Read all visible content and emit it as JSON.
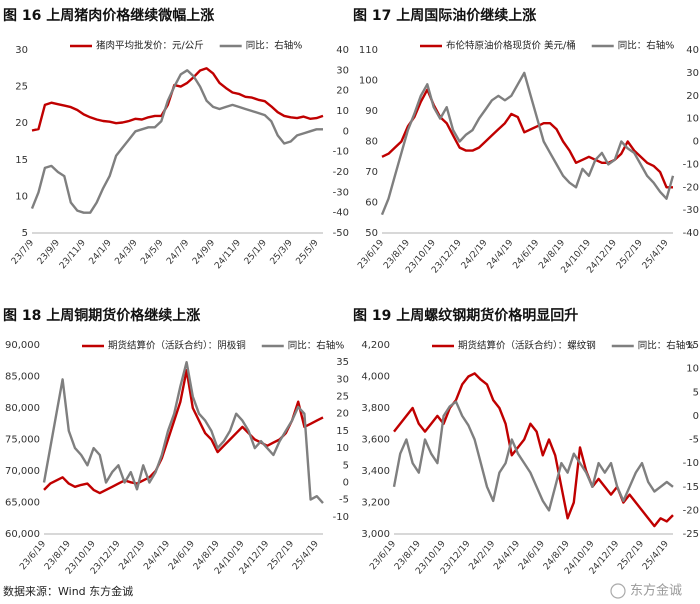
{
  "chart_data": [
    {
      "type": "line",
      "title": "图 16 上周猪肉价格继续微幅上涨",
      "categories": [
        "23/7/9",
        null,
        null,
        null,
        "23/9/9",
        null,
        null,
        null,
        "23/11/9",
        null,
        null,
        null,
        "24/1/9",
        null,
        null,
        null,
        "24/3/9",
        null,
        null,
        null,
        "24/5/9",
        null,
        null,
        null,
        "24/7/9",
        null,
        null,
        null,
        "24/9/9",
        null,
        null,
        null,
        "24/11/9",
        null,
        null,
        null,
        "25/1/9",
        null,
        null,
        null,
        "25/3/9",
        null,
        null,
        null,
        "25/5/9",
        null
      ],
      "ylim": [
        5,
        30
      ],
      "yticks": [
        5,
        10,
        15,
        20,
        25,
        30
      ],
      "y2lim": [
        -50,
        40
      ],
      "y2ticks": [
        -50,
        -40,
        -30,
        -20,
        -10,
        0,
        10,
        20,
        30,
        40
      ],
      "series": [
        {
          "name": "猪肉平均批发价：元/公斤",
          "color": "#c00000",
          "values": [
            19,
            19.2,
            22.5,
            22.8,
            22.6,
            22.4,
            22.2,
            21.8,
            21.2,
            20.8,
            20.5,
            20.3,
            20.2,
            20.0,
            20.1,
            20.3,
            20.6,
            20.5,
            20.8,
            21.0,
            21.0,
            22.5,
            25.2,
            25.0,
            25.5,
            26.3,
            27.2,
            27.5,
            26.8,
            25.5,
            24.8,
            24.2,
            24.0,
            23.6,
            23.5,
            23.2,
            23.0,
            22.3,
            21.5,
            21.0,
            20.8,
            20.7,
            20.9,
            20.6,
            20.7,
            21.0
          ]
        },
        {
          "name": "同比：右轴%",
          "color": "#7f7f7f",
          "axis": "y2",
          "values": [
            -38,
            -30,
            -18,
            -17,
            -20,
            -22,
            -35,
            -39,
            -40,
            -40,
            -35,
            -28,
            -22,
            -12,
            -8,
            -4,
            0,
            1,
            2,
            2,
            5,
            15,
            22,
            28,
            30,
            27,
            22,
            15,
            12,
            11,
            12,
            13,
            12,
            11,
            10,
            9,
            8,
            5,
            -2,
            -6,
            -5,
            -2,
            -1,
            0,
            1,
            1
          ]
        }
      ]
    },
    {
      "type": "line",
      "title": "图 17 上周国际油价继续上涨",
      "categories": [
        "23/6/19",
        null,
        null,
        null,
        "23/8/19",
        null,
        null,
        null,
        "23/10/19",
        null,
        null,
        null,
        "23/12/19",
        null,
        null,
        null,
        "24/2/19",
        null,
        null,
        null,
        "24/4/19",
        null,
        null,
        null,
        "24/6/19",
        null,
        null,
        null,
        "24/8/19",
        null,
        null,
        null,
        "24/10/19",
        null,
        null,
        null,
        "24/12/19",
        null,
        null,
        null,
        "25/2/19",
        null,
        null,
        null,
        "25/4/19",
        null
      ],
      "ylim": [
        50,
        110
      ],
      "yticks": [
        50,
        60,
        70,
        80,
        90,
        100,
        110
      ],
      "y2lim": [
        -40,
        40
      ],
      "y2ticks": [
        -40,
        -30,
        -20,
        -10,
        0,
        10,
        20,
        30,
        40
      ],
      "series": [
        {
          "name": "布伦特原油价格现货价 美元/桶",
          "color": "#c00000",
          "values": [
            75,
            76,
            78,
            80,
            85,
            88,
            93,
            97,
            92,
            88,
            86,
            82,
            78,
            77,
            77,
            78,
            80,
            82,
            84,
            86,
            89,
            88,
            83,
            84,
            85,
            86,
            86,
            84,
            80,
            77,
            73,
            74,
            75,
            74,
            73,
            73,
            74,
            76,
            80,
            77,
            75,
            73,
            72,
            70,
            65,
            65
          ]
        },
        {
          "name": "同比：右轴%",
          "color": "#7f7f7f",
          "axis": "y2",
          "values": [
            -32,
            -25,
            -15,
            -5,
            5,
            12,
            20,
            25,
            15,
            10,
            15,
            5,
            0,
            3,
            5,
            10,
            14,
            18,
            20,
            18,
            20,
            25,
            30,
            20,
            10,
            0,
            -5,
            -10,
            -15,
            -18,
            -20,
            -12,
            -15,
            -8,
            -5,
            -10,
            -8,
            0,
            -3,
            -5,
            -10,
            -15,
            -18,
            -22,
            -25,
            -15
          ]
        }
      ]
    },
    {
      "type": "line",
      "title": "图 18 上周铜期货价格继续上涨",
      "categories": [
        "23/6/19",
        null,
        null,
        null,
        "23/8/19",
        null,
        null,
        null,
        "23/10/19",
        null,
        null,
        null,
        "23/12/19",
        null,
        null,
        null,
        "24/2/19",
        null,
        null,
        null,
        "24/4/19",
        null,
        null,
        null,
        "24/6/19",
        null,
        null,
        null,
        "24/8/19",
        null,
        null,
        null,
        "24/10/19",
        null,
        null,
        null,
        "24/12/19",
        null,
        null,
        null,
        "25/2/19",
        null,
        null,
        null,
        "25/4/19",
        null
      ],
      "ylim": [
        60000,
        90000
      ],
      "yticks": [
        {
          "value": 60000,
          "label": "60,000"
        },
        {
          "value": 65000,
          "label": "65,000"
        },
        {
          "value": 70000,
          "label": "70,000"
        },
        {
          "value": 75000,
          "label": "75,000"
        },
        {
          "value": 80000,
          "label": "80,000"
        },
        {
          "value": 85000,
          "label": "85,000"
        },
        {
          "value": 90000,
          "label": "90,000"
        }
      ],
      "y2lim": [
        -15,
        40
      ],
      "y2ticks": [
        -10,
        -5,
        0,
        5,
        10,
        15,
        20,
        25,
        30,
        35
      ],
      "series": [
        {
          "name": "期货结算价（活跃合约）：阴极铜",
          "color": "#c00000",
          "values": [
            67000,
            68000,
            68500,
            69000,
            68000,
            67500,
            67800,
            68000,
            67000,
            66500,
            67000,
            67500,
            68000,
            68500,
            68200,
            68000,
            68500,
            69000,
            70000,
            72000,
            75000,
            78000,
            81000,
            86000,
            80000,
            78000,
            76000,
            75000,
            73000,
            74000,
            75000,
            76000,
            77000,
            76000,
            75000,
            74500,
            74000,
            74500,
            75000,
            76000,
            78000,
            81000,
            77000,
            77500,
            78000,
            78500
          ]
        },
        {
          "name": "同比：右轴%",
          "color": "#7f7f7f",
          "axis": "y2",
          "values": [
            0,
            10,
            20,
            30,
            15,
            10,
            8,
            5,
            10,
            8,
            0,
            3,
            5,
            0,
            3,
            -2,
            5,
            0,
            3,
            8,
            15,
            20,
            28,
            35,
            25,
            20,
            18,
            15,
            10,
            12,
            15,
            20,
            18,
            15,
            10,
            12,
            10,
            8,
            12,
            15,
            18,
            22,
            20,
            -5,
            -4,
            -6
          ]
        }
      ]
    },
    {
      "type": "line",
      "title": "图 19 上周螺纹钢期货价格明显回升",
      "categories": [
        "23/6/19",
        null,
        null,
        null,
        "23/8/19",
        null,
        null,
        null,
        "23/10/19",
        null,
        null,
        null,
        "23/12/19",
        null,
        null,
        null,
        "24/2/19",
        null,
        null,
        null,
        "24/4/19",
        null,
        null,
        null,
        "24/6/19",
        null,
        null,
        null,
        "24/8/19",
        null,
        null,
        null,
        "24/10/19",
        null,
        null,
        null,
        "24/12/19",
        null,
        null,
        null,
        "25/2/19",
        null,
        null,
        null,
        "25/4/19",
        null
      ],
      "ylim": [
        3000,
        4200
      ],
      "yticks": [
        {
          "value": 3000,
          "label": "3,000"
        },
        {
          "value": 3200,
          "label": "3,200"
        },
        {
          "value": 3400,
          "label": "3,400"
        },
        {
          "value": 3600,
          "label": "3,600"
        },
        {
          "value": 3800,
          "label": "3,800"
        },
        {
          "value": 4000,
          "label": "4,000"
        },
        {
          "value": 4200,
          "label": "4,200"
        }
      ],
      "y2lim": [
        -25,
        15
      ],
      "y2ticks": [
        -25,
        -20,
        -15,
        -10,
        -5,
        0,
        5,
        10,
        15
      ],
      "series": [
        {
          "name": "期货结算价（活跃合约）：螺纹钢",
          "color": "#c00000",
          "values": [
            3650,
            3700,
            3750,
            3800,
            3700,
            3650,
            3700,
            3750,
            3700,
            3800,
            3850,
            3950,
            4000,
            4020,
            3980,
            3950,
            3850,
            3800,
            3700,
            3500,
            3550,
            3600,
            3700,
            3650,
            3500,
            3600,
            3500,
            3300,
            3100,
            3200,
            3550,
            3400,
            3300,
            3350,
            3300,
            3250,
            3300,
            3200,
            3250,
            3200,
            3150,
            3100,
            3050,
            3100,
            3080,
            3120
          ]
        },
        {
          "name": "同比：右轴%",
          "color": "#7f7f7f",
          "axis": "y2",
          "values": [
            -15,
            -8,
            -5,
            -10,
            -12,
            -5,
            -8,
            -10,
            0,
            2,
            3,
            0,
            -2,
            -5,
            -10,
            -15,
            -18,
            -12,
            -10,
            -5,
            -8,
            -10,
            -12,
            -15,
            -18,
            -20,
            -15,
            -10,
            -12,
            -8,
            -10,
            -12,
            -15,
            -10,
            -12,
            -10,
            -15,
            -18,
            -15,
            -12,
            -10,
            -14,
            -16,
            -15,
            -14,
            -15
          ]
        }
      ]
    }
  ],
  "source": "数据来源：Wind 东方金诚",
  "watermark": "东方金诚"
}
